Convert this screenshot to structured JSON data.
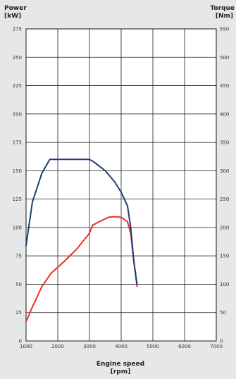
{
  "chart_data": {
    "type": "line",
    "xlabel": "Engine speed",
    "xlabel_unit": "[rpm]",
    "y_left_label": "Power",
    "y_left_unit": "[kW]",
    "y_right_label": "Torque",
    "y_right_unit": "[Nm]",
    "xlim": [
      1000,
      7000
    ],
    "ylim_left": [
      0,
      275
    ],
    "ylim_right": [
      0,
      550
    ],
    "x_ticks": [
      1000,
      2000,
      3000,
      4000,
      5000,
      6000,
      7000
    ],
    "y_left_ticks": [
      0,
      25,
      50,
      75,
      100,
      125,
      150,
      175,
      200,
      225,
      250,
      275
    ],
    "y_right_ticks": [
      0,
      50,
      100,
      150,
      200,
      250,
      300,
      350,
      400,
      450,
      500,
      550
    ],
    "grid": true,
    "legend": "none",
    "series": [
      {
        "axis": "left",
        "color": "#e8312e",
        "points": [
          [
            1000,
            17
          ],
          [
            1200,
            30
          ],
          [
            1500,
            48
          ],
          [
            1800,
            60
          ],
          [
            2200,
            70
          ],
          [
            2600,
            81
          ],
          [
            3000,
            95
          ],
          [
            3100,
            102
          ],
          [
            3300,
            105
          ],
          [
            3600,
            109
          ],
          [
            3800,
            109.5
          ],
          [
            4000,
            109
          ],
          [
            4200,
            105
          ],
          [
            4300,
            95
          ],
          [
            4400,
            70
          ],
          [
            4500,
            48
          ]
        ]
      },
      {
        "axis": "right",
        "color": "#1d3c78",
        "points": [
          [
            1000,
            168
          ],
          [
            1200,
            245
          ],
          [
            1500,
            296
          ],
          [
            1750,
            320
          ],
          [
            2000,
            320
          ],
          [
            2500,
            320
          ],
          [
            3000,
            320
          ],
          [
            3150,
            315
          ],
          [
            3500,
            300
          ],
          [
            3800,
            280
          ],
          [
            4000,
            262
          ],
          [
            4200,
            238
          ],
          [
            4300,
            200
          ],
          [
            4400,
            140
          ],
          [
            4500,
            100
          ]
        ]
      }
    ]
  }
}
